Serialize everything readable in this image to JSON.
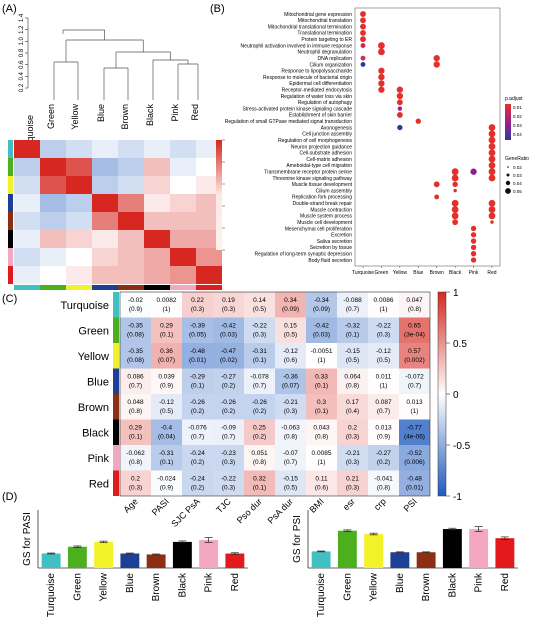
{
  "panel_labels": {
    "a": "(A)",
    "b": "(B)",
    "c": "(C)",
    "d": "(D)"
  },
  "colors": {
    "Turquoise": "#40c0c0",
    "Green": "#4caf1e",
    "Yellow": "#f3f22a",
    "Blue": "#1e3f96",
    "Brown": "#8b2e12",
    "Black": "#000000",
    "Pink": "#f4a8c0",
    "Red": "#e31a1c"
  },
  "chart_data": [
    {
      "type": "dendrogram",
      "panel": "A",
      "yticks": [
        "0.2",
        "0.4",
        "0.6",
        "0.8",
        "1.0",
        "1.2",
        "1.4"
      ],
      "ylim": [
        0.2,
        1.4
      ],
      "leaves": [
        "Turquoise",
        "Green",
        "Yellow",
        "Blue",
        "Brown",
        "Black",
        "Pink",
        "Red"
      ]
    },
    {
      "type": "heatmap",
      "panel": "A",
      "modules": [
        "Turquoise",
        "Green",
        "Yellow",
        "Blue",
        "Brown",
        "Black",
        "Pink",
        "Red"
      ],
      "legend_ticks": [],
      "values": [
        [
          1.0,
          -0.3,
          -0.2,
          -0.1,
          -0.2,
          -0.1,
          -0.2,
          -0.1
        ],
        [
          -0.3,
          1.0,
          0.8,
          -0.4,
          -0.3,
          0.3,
          -0.1,
          0.0
        ],
        [
          -0.2,
          0.8,
          1.0,
          -0.3,
          -0.2,
          0.2,
          0.0,
          0.1
        ],
        [
          -0.1,
          -0.4,
          -0.3,
          1.0,
          0.6,
          0.1,
          0.2,
          0.3
        ],
        [
          -0.2,
          -0.3,
          -0.2,
          0.6,
          1.0,
          0.3,
          0.3,
          0.3
        ],
        [
          -0.1,
          0.3,
          0.2,
          0.1,
          0.3,
          1.0,
          0.4,
          0.4
        ],
        [
          -0.2,
          -0.1,
          0.0,
          0.2,
          0.3,
          0.4,
          1.0,
          0.5
        ],
        [
          -0.1,
          0.0,
          0.1,
          0.3,
          0.3,
          0.4,
          0.5,
          1.0
        ]
      ]
    },
    {
      "type": "scatter",
      "panel": "B",
      "columns": [
        "Turquoise",
        "Green",
        "Yellow",
        "Blue",
        "Brown",
        "Black",
        "Pink",
        "Red"
      ],
      "terms": [
        "Mitochondrial gene expression",
        "Mitochondrial translation",
        "Mitochondrial translational termination",
        "Translational termination",
        "Protein targeting to ER",
        "Neutrophil activation involved in immune response",
        "Neutrophil degranulation",
        "DNA replication",
        "Cilium organization",
        "Response to lipopolysaccharide",
        "Response to molecule of bacterial origin",
        "Epidermal cell differentiation",
        "Receptor-mediated endocytosis",
        "Regulation of water loss via skin",
        "Regulation of autophagy",
        "Stress-activated protein kinase signaling cascade",
        "Establishment of skin barrier",
        "Regulation of small GTPase mediated signal transduction",
        "Axonogenesis",
        "Cell junction assembly",
        "Regulation of cell morphogenesis",
        "Neuron projection guidance",
        "Cell-substrate adhesion",
        "Cell-matrix adhesion",
        "Ameboidal-type cell migration",
        "Transmembrane receptor protein serine",
        "Threonine kinase signaling pathway",
        "Muscle tissue development",
        "Cilium assembly",
        "Replication fork processing",
        "Double-strand break repair",
        "Muscle contraction",
        "Muscle system process",
        "Muscle cell development",
        "Mesenchymal cell proliferation",
        "Excretion",
        "Saliva secretion",
        "Secretion by tissue",
        "Regulation of long-term synaptic depression",
        "Body fluid secretion"
      ],
      "points": [
        {
          "term": 0,
          "col": 0,
          "size": 0.8,
          "color": "#e3302a"
        },
        {
          "term": 1,
          "col": 0,
          "size": 0.8,
          "color": "#e3302a"
        },
        {
          "term": 2,
          "col": 0,
          "size": 0.8,
          "color": "#e3302a"
        },
        {
          "term": 3,
          "col": 0,
          "size": 0.8,
          "color": "#e3302a"
        },
        {
          "term": 4,
          "col": 0,
          "size": 0.8,
          "color": "#e3302a"
        },
        {
          "term": 5,
          "col": 0,
          "size": 0.6,
          "color": "#d8204a"
        },
        {
          "term": 5,
          "col": 1,
          "size": 1.0,
          "color": "#e3302a"
        },
        {
          "term": 6,
          "col": 1,
          "size": 1.0,
          "color": "#e3302a"
        },
        {
          "term": 7,
          "col": 0,
          "size": 0.6,
          "color": "#c0305a"
        },
        {
          "term": 7,
          "col": 4,
          "size": 0.9,
          "color": "#e3302a"
        },
        {
          "term": 8,
          "col": 0,
          "size": 0.6,
          "color": "#2a3aa0"
        },
        {
          "term": 8,
          "col": 4,
          "size": 0.9,
          "color": "#e3302a"
        },
        {
          "term": 9,
          "col": 1,
          "size": 0.9,
          "color": "#e3302a"
        },
        {
          "term": 10,
          "col": 1,
          "size": 0.9,
          "color": "#e3302a"
        },
        {
          "term": 11,
          "col": 1,
          "size": 0.9,
          "color": "#e3302a"
        },
        {
          "term": 12,
          "col": 1,
          "size": 0.9,
          "color": "#e3302a"
        },
        {
          "term": 12,
          "col": 2,
          "size": 0.9,
          "color": "#e3302a"
        },
        {
          "term": 13,
          "col": 2,
          "size": 0.9,
          "color": "#e3302a"
        },
        {
          "term": 14,
          "col": 2,
          "size": 0.8,
          "color": "#e3302a"
        },
        {
          "term": 15,
          "col": 2,
          "size": 0.5,
          "color": "#a0208a"
        },
        {
          "term": 16,
          "col": 2,
          "size": 0.8,
          "color": "#e3302a"
        },
        {
          "term": 17,
          "col": 3,
          "size": 0.7,
          "color": "#e3302a"
        },
        {
          "term": 18,
          "col": 2,
          "size": 0.7,
          "color": "#2a3aa0"
        },
        {
          "term": 18,
          "col": 7,
          "size": 1.0,
          "color": "#e3302a"
        },
        {
          "term": 19,
          "col": 7,
          "size": 1.0,
          "color": "#e3302a"
        },
        {
          "term": 20,
          "col": 7,
          "size": 1.0,
          "color": "#e3302a"
        },
        {
          "term": 21,
          "col": 7,
          "size": 1.0,
          "color": "#e3302a"
        },
        {
          "term": 22,
          "col": 7,
          "size": 1.0,
          "color": "#e3302a"
        },
        {
          "term": 23,
          "col": 7,
          "size": 1.0,
          "color": "#e3302a"
        },
        {
          "term": 24,
          "col": 7,
          "size": 1.0,
          "color": "#e3302a"
        },
        {
          "term": 25,
          "col": 5,
          "size": 1.0,
          "color": "#e3302a"
        },
        {
          "term": 25,
          "col": 6,
          "size": 0.9,
          "color": "#8a2090"
        },
        {
          "term": 25,
          "col": 7,
          "size": 1.0,
          "color": "#e3302a"
        },
        {
          "term": 26,
          "col": 5,
          "size": 1.0,
          "color": "#e3302a"
        },
        {
          "term": 26,
          "col": 7,
          "size": 1.0,
          "color": "#e3302a"
        },
        {
          "term": 27,
          "col": 4,
          "size": 0.8,
          "color": "#e3302a"
        },
        {
          "term": 27,
          "col": 5,
          "size": 0.7,
          "color": "#e3302a"
        },
        {
          "term": 28,
          "col": 5,
          "size": 0.3,
          "color": "#e3302a"
        },
        {
          "term": 29,
          "col": 4,
          "size": 0.6,
          "color": "#e3302a"
        },
        {
          "term": 30,
          "col": 5,
          "size": 1.0,
          "color": "#e3302a"
        },
        {
          "term": 30,
          "col": 7,
          "size": 1.0,
          "color": "#e3302a"
        },
        {
          "term": 31,
          "col": 5,
          "size": 1.0,
          "color": "#e3302a"
        },
        {
          "term": 31,
          "col": 7,
          "size": 1.0,
          "color": "#e3302a"
        },
        {
          "term": 32,
          "col": 5,
          "size": 1.0,
          "color": "#e3302a"
        },
        {
          "term": 32,
          "col": 7,
          "size": 1.0,
          "color": "#e3302a"
        },
        {
          "term": 33,
          "col": 5,
          "size": 0.8,
          "color": "#e3302a"
        },
        {
          "term": 33,
          "col": 7,
          "size": 0.3,
          "color": "#e3302a"
        },
        {
          "term": 34,
          "col": 6,
          "size": 0.7,
          "color": "#e3302a"
        },
        {
          "term": 35,
          "col": 6,
          "size": 0.7,
          "color": "#e3302a"
        },
        {
          "term": 36,
          "col": 6,
          "size": 0.7,
          "color": "#e3302a"
        },
        {
          "term": 37,
          "col": 6,
          "size": 0.7,
          "color": "#e3302a"
        },
        {
          "term": 38,
          "col": 6,
          "size": 0.7,
          "color": "#e3302a"
        },
        {
          "term": 39,
          "col": 6,
          "size": 0.7,
          "color": "#e3302a"
        }
      ],
      "legend": {
        "padjust_title": "p.adjust",
        "padjust_ticks": [
          "0.01",
          "0.02",
          "0.03",
          "0.04"
        ],
        "generatio_title": "GeneRatio",
        "generatio_ticks": [
          "0.02",
          "0.03",
          "0.04",
          "0.05"
        ]
      }
    },
    {
      "type": "heatmap",
      "panel": "C",
      "rows": [
        "Turquoise",
        "Green",
        "Yellow",
        "Blue",
        "Brown",
        "Black",
        "Pink",
        "Red"
      ],
      "columns": [
        "Age",
        "PASI",
        "SJC PsA",
        "TJC",
        "Pso dur",
        "PsA dur",
        "BMI",
        "esr",
        "crp",
        "PSI"
      ],
      "cells": [
        [
          [
            "-0.02",
            "(0.9)",
            -0.02
          ],
          [
            "0.0082",
            "(1)",
            0.0082
          ],
          [
            "0.22",
            "(0.3)",
            0.22
          ],
          [
            "0.19",
            "(0.3)",
            0.19
          ],
          [
            "0.14",
            "(0.5)",
            0.14
          ],
          [
            "0.34",
            "(0.09)",
            0.34
          ],
          [
            "-0.34",
            "(0.09)",
            -0.34
          ],
          [
            "-0.088",
            "(0.7)",
            -0.088
          ],
          [
            "0.0086",
            "(1)",
            0.0086
          ],
          [
            "0.047",
            "(0.8)",
            0.047
          ]
        ],
        [
          [
            "-0.35",
            "(0.08)",
            -0.35
          ],
          [
            "0.29",
            "(0.1)",
            0.29
          ],
          [
            "-0.39",
            "(0.05)",
            -0.39
          ],
          [
            "-0.42",
            "(0.03)",
            -0.42
          ],
          [
            "-0.22",
            "(0.3)",
            -0.22
          ],
          [
            "0.15",
            "(0.5)",
            0.15
          ],
          [
            "-0.42",
            "(0.03)",
            -0.42
          ],
          [
            "-0.32",
            "(0.1)",
            -0.32
          ],
          [
            "-0.22",
            "(0.3)",
            -0.22
          ],
          [
            "0.65",
            "(3e-04)",
            0.65
          ]
        ],
        [
          [
            "-0.35",
            "(0.08)",
            -0.35
          ],
          [
            "0.36",
            "(0.07)",
            0.36
          ],
          [
            "-0.48",
            "(0.01)",
            -0.48
          ],
          [
            "-0.47",
            "(0.02)",
            -0.47
          ],
          [
            "-0.31",
            "(0.1)",
            -0.31
          ],
          [
            "-0.12",
            "(0.6)",
            -0.12
          ],
          [
            "-0.0051",
            "(1)",
            -0.0051
          ],
          [
            "-0.15",
            "(0.5)",
            -0.15
          ],
          [
            "-0.12",
            "(0.5)",
            -0.12
          ],
          [
            "0.57",
            "(0.002)",
            0.57
          ]
        ],
        [
          [
            "0.086",
            "(0.7)",
            0.086
          ],
          [
            "0.039",
            "(0.9)",
            0.039
          ],
          [
            "-0.29",
            "(0.1)",
            -0.29
          ],
          [
            "-0.27",
            "(0.2)",
            -0.27
          ],
          [
            "-0.078",
            "(0.7)",
            -0.078
          ],
          [
            "-0.36",
            "(0.07)",
            -0.36
          ],
          [
            "0.33",
            "(0.1)",
            0.33
          ],
          [
            "0.064",
            "(0.8)",
            0.064
          ],
          [
            "0.011",
            "(1)",
            0.011
          ],
          [
            "-0.072",
            "(0.7)",
            -0.072
          ]
        ],
        [
          [
            "0.048",
            "(0.8)",
            0.048
          ],
          [
            "-0.12",
            "(0.5)",
            -0.12
          ],
          [
            "-0.26",
            "(0.2)",
            -0.26
          ],
          [
            "-0.26",
            "(0.2)",
            -0.26
          ],
          [
            "-0.26",
            "(0.2)",
            -0.26
          ],
          [
            "-0.21",
            "(0.3)",
            -0.21
          ],
          [
            "0.3",
            "(0.1)",
            0.3
          ],
          [
            "0.17",
            "(0.4)",
            0.17
          ],
          [
            "0.087",
            "(0.7)",
            0.087
          ],
          [
            "0.013",
            "(1)",
            0.013
          ]
        ],
        [
          [
            "0.29",
            "(0.1)",
            0.29
          ],
          [
            "-0.4",
            "(0.04)",
            -0.4
          ],
          [
            "-0.076",
            "(0.7)",
            -0.076
          ],
          [
            "-0.09",
            "(0.7)",
            -0.09
          ],
          [
            "0.25",
            "(0.2)",
            0.25
          ],
          [
            "-0.063",
            "(0.8)",
            -0.063
          ],
          [
            "0.043",
            "(0.8)",
            0.043
          ],
          [
            "0.2",
            "(0.3)",
            0.2
          ],
          [
            "0.013",
            "(0.9)",
            0.013
          ],
          [
            "-0.77",
            "(4e-06)",
            -0.77
          ]
        ],
        [
          [
            "-0.062",
            "(0.8)",
            -0.062
          ],
          [
            "-0.31",
            "(0.1)",
            -0.31
          ],
          [
            "-0.24",
            "(0.2)",
            -0.24
          ],
          [
            "-0.23",
            "(0.3)",
            -0.23
          ],
          [
            "0.051",
            "(0.8)",
            0.051
          ],
          [
            "-0.07",
            "(0.7)",
            -0.07
          ],
          [
            "0.0085",
            "(1)",
            0.0085
          ],
          [
            "-0.21",
            "(0.3)",
            -0.21
          ],
          [
            "-0.27",
            "(0.2)",
            -0.27
          ],
          [
            "-0.52",
            "(0.006)",
            -0.52
          ]
        ],
        [
          [
            "0.2",
            "(0.3)",
            0.2
          ],
          [
            "-0.024",
            "(0.9)",
            -0.024
          ],
          [
            "-0.24",
            "(0.2)",
            -0.24
          ],
          [
            "-0.22",
            "(0.3)",
            -0.22
          ],
          [
            "0.32",
            "(0.1)",
            0.32
          ],
          [
            "-0.15",
            "(0.5)",
            -0.15
          ],
          [
            "0.11",
            "(0.6)",
            0.11
          ],
          [
            "0.21",
            "(0.3)",
            0.21
          ],
          [
            "-0.041",
            "(0.8)",
            -0.041
          ],
          [
            "-0.48",
            "(0.01)",
            -0.48
          ]
        ]
      ],
      "legend_ticks": [
        "1",
        "0.5",
        "0",
        "-0.5",
        "-1"
      ]
    },
    {
      "type": "bar",
      "panel": "D-left",
      "categories": [
        "Turquoise",
        "Green",
        "Yellow",
        "Blue",
        "Brown",
        "Black",
        "Pink",
        "Red"
      ],
      "values": [
        0.15,
        0.22,
        0.27,
        0.15,
        0.14,
        0.27,
        0.29,
        0.15
      ],
      "errors": [
        0.005,
        0.008,
        0.008,
        0.005,
        0.005,
        0.01,
        0.025,
        0.008
      ],
      "ylabel": "GS for PASI",
      "ylim": [
        0,
        0.6
      ]
    },
    {
      "type": "bar",
      "panel": "D-right",
      "categories": [
        "Turquoise",
        "Green",
        "Yellow",
        "Blue",
        "Brown",
        "Black",
        "Pink",
        "Red"
      ],
      "values": [
        0.2,
        0.45,
        0.41,
        0.19,
        0.19,
        0.47,
        0.47,
        0.36
      ],
      "errors": [
        0.005,
        0.01,
        0.01,
        0.005,
        0.005,
        0.01,
        0.03,
        0.015
      ],
      "ylabel": "GS for PSI",
      "ylim": [
        0,
        0.7
      ]
    }
  ]
}
